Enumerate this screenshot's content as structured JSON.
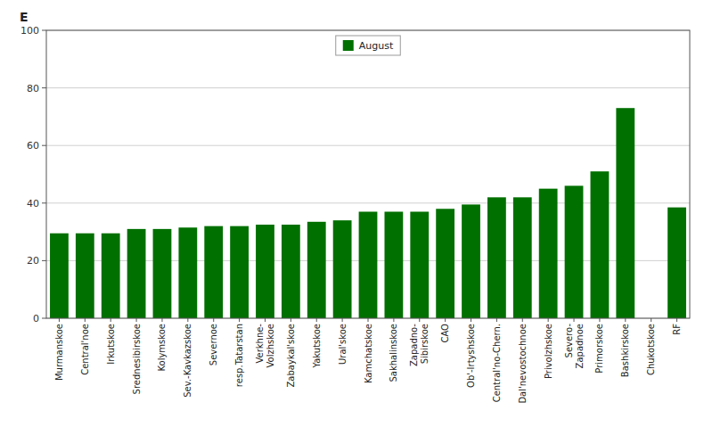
{
  "chart_data": {
    "type": "bar",
    "ylabel": "E",
    "categories": [
      "Murmanskoe",
      "Central'noe",
      "Irkutskoe",
      "Srednesibirskoe",
      "Kolymskoe",
      "Sev.-Kavkazskoe",
      "Severnoe",
      "resp.Tatarstan",
      "Verkhne-\nVolzhskoe",
      "Zabaykal'skoe",
      "Yakutskoe",
      "Ural'skoe",
      "Kamchatskoe",
      "Sakhalinskoe",
      "Zapadno-\nSibirskoe",
      "CAO",
      "Ob'-Irtyshskoe",
      "Central'no-Chern.",
      "Dal'nevostochnoe",
      "Privolzhskoe",
      "Severo-\nZapadnoe",
      "Primorskoe",
      "Bashkirskoe",
      "Chukotskoe",
      "RF"
    ],
    "series": [
      {
        "name": "August",
        "color": "#007000",
        "values": [
          29.5,
          29.5,
          29.5,
          31.0,
          31.0,
          31.5,
          32.0,
          32.0,
          32.5,
          32.5,
          33.5,
          34.0,
          37.0,
          37.0,
          37.0,
          38.0,
          39.5,
          42.0,
          42.0,
          45.0,
          46.0,
          51.0,
          73.0,
          0.0,
          38.5
        ]
      }
    ],
    "ylim": [
      0,
      100
    ],
    "yticks": [
      0,
      20,
      40,
      60,
      80,
      100
    ],
    "grid": true,
    "legend": "top"
  }
}
